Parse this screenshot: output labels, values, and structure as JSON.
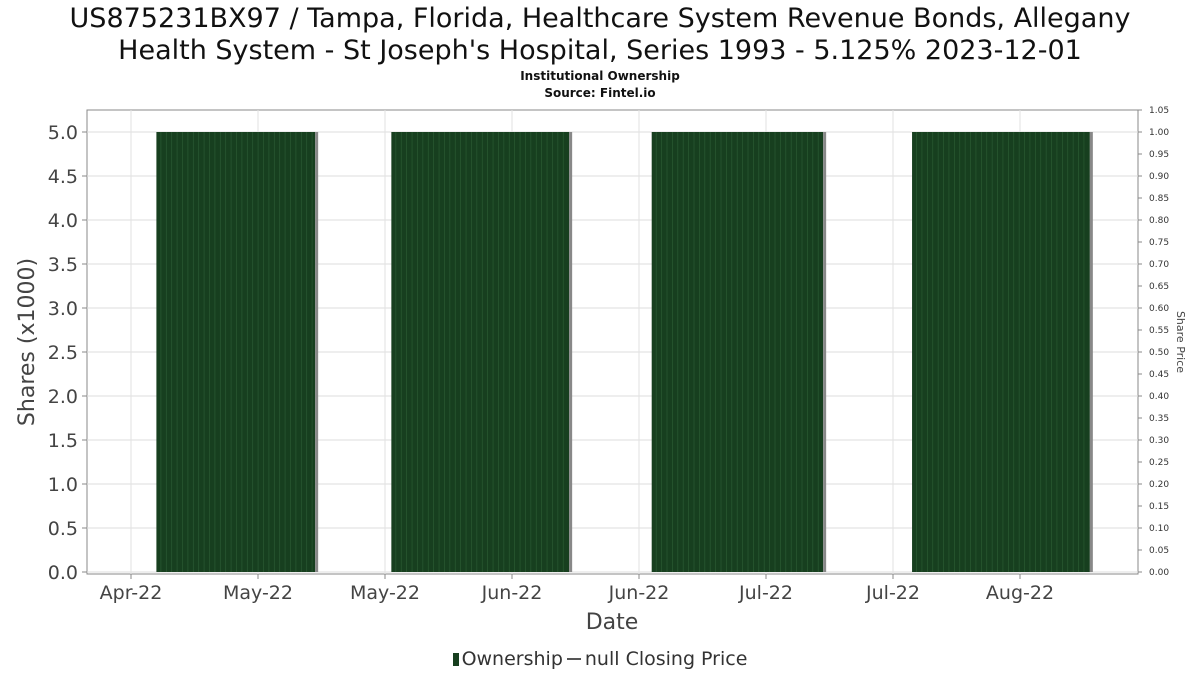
{
  "chart_data": {
    "type": "bar",
    "title": "US875231BX97 / Tampa, Florida, Healthcare System Revenue Bonds, Allegany Health System - St Joseph's Hospital, Series 1993 - 5.125% 2023-12-01",
    "title_line1": "US875231BX97 / Tampa, Florida, Healthcare System Revenue Bonds, Allegany",
    "title_line2": "Health System - St Joseph's Hospital, Series 1993 - 5.125% 2023-12-01",
    "subtitle": "Institutional Ownership",
    "source": "Source: Fintel.io",
    "xlabel": "Date",
    "ylabel": "Shares (x1000)",
    "y2label": "Share Price",
    "x_tick_labels": [
      "Apr-22",
      "May-22",
      "May-22",
      "Jun-22",
      "Jun-22",
      "Jul-22",
      "Jul-22",
      "Aug-22"
    ],
    "ylim": [
      0,
      5.0
    ],
    "y_ticks": [
      "0.0",
      "0.5",
      "1.0",
      "1.5",
      "2.0",
      "2.5",
      "3.0",
      "3.5",
      "4.0",
      "4.5",
      "5.0"
    ],
    "y2lim": [
      0,
      1.05
    ],
    "y2_ticks": [
      "0.00",
      "0.05",
      "0.10",
      "0.15",
      "0.20",
      "0.25",
      "0.30",
      "0.35",
      "0.40",
      "0.45",
      "0.50",
      "0.55",
      "0.60",
      "0.65",
      "0.70",
      "0.75",
      "0.80",
      "0.85",
      "0.90",
      "0.95",
      "1.00",
      "1.05"
    ],
    "grid": true,
    "legend_position": "bottom",
    "series": [
      {
        "name": "Ownership",
        "color": "#173f1f",
        "blocks": [
          {
            "start_tick": 0.2,
            "end_tick": 1.45,
            "value": 5.0
          },
          {
            "start_tick": 2.05,
            "end_tick": 3.45,
            "value": 5.0
          },
          {
            "start_tick": 4.1,
            "end_tick": 5.45,
            "value": 5.0
          },
          {
            "start_tick": 6.15,
            "end_tick": 7.55,
            "value": 5.0
          }
        ]
      },
      {
        "name": "null Closing Price",
        "color": "#555555",
        "values": []
      }
    ]
  },
  "legend": {
    "ownership_label": "Ownership",
    "price_label": "null Closing Price"
  }
}
